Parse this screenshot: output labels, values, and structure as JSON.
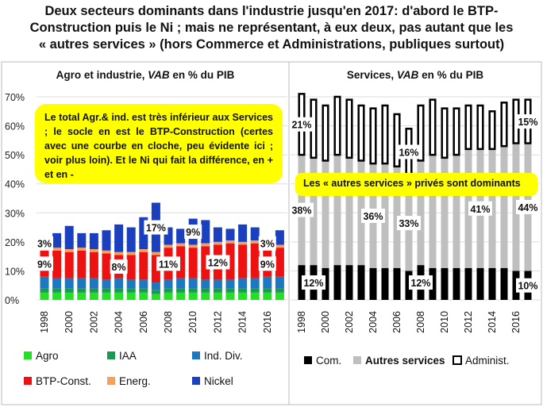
{
  "title": [
    "Deux secteurs dominants dans l'industrie jusqu'en 2017: d'abord le BTP-",
    "Construction puis le Ni ; mais ne représentant, à eux deux, pas autant que les",
    "« autres services » (hors Commerce et Administrations, publiques surtout)"
  ],
  "colors": {
    "Agro": "#22e022",
    "IAA": "#1a9a50",
    "Ind. Div.": "#1e78c0",
    "BTP-Const.": "#ee1111",
    "Energ.": "#f4a060",
    "Nickel": "#1a40c0",
    "Com.": "#000000",
    "Autres services": "#bfbfbf",
    "Administ.": "#ffffff"
  },
  "annotations": {
    "left": "Le total Agr.& ind. est très inférieur aux Services ; le socle en est le BTP-Construction (certes avec une courbe en cloche, peu évidente ici ; voir plus loin). Et le Ni qui fait la différence, en + et en -",
    "right": "Les « autres services » privés sont dominants"
  },
  "chart_data": [
    {
      "type": "bar",
      "stacked": true,
      "title": "Agro et industrie, VAB en % du PIB",
      "ylim": [
        0,
        70
      ],
      "yticks": [
        "0%",
        "10%",
        "20%",
        "30%",
        "40%",
        "50%",
        "60%",
        "70%"
      ],
      "grid": true,
      "legend": "bottom",
      "categories": [
        1998,
        1999,
        2000,
        2001,
        2002,
        2003,
        2004,
        2005,
        2006,
        2007,
        2008,
        2009,
        2010,
        2011,
        2012,
        2013,
        2014,
        2015,
        2016,
        2017
      ],
      "xticklabels": [
        "1998",
        "2000",
        "2002",
        "2004",
        "2006",
        "2008",
        "2010",
        "2012",
        "2014",
        "2016"
      ],
      "series": [
        {
          "name": "Agro",
          "values": [
            2.5,
            2.5,
            2.5,
            2.5,
            2.5,
            2.5,
            2.5,
            2.5,
            2.5,
            2,
            2.5,
            2.5,
            2.5,
            2.5,
            2.5,
            2.5,
            2.5,
            2.5,
            2.5,
            2.5
          ]
        },
        {
          "name": "IAA",
          "values": [
            1.5,
            1.5,
            1.5,
            1.5,
            1.5,
            1.5,
            1.5,
            1.5,
            1.5,
            1.5,
            1.5,
            1.5,
            1.5,
            1.5,
            1.5,
            1.5,
            1.5,
            1.5,
            1.5,
            1.5
          ]
        },
        {
          "name": "Ind. Div.",
          "values": [
            4,
            3.5,
            3.5,
            3.5,
            3.5,
            3,
            3.5,
            3,
            3,
            2.5,
            3,
            3.5,
            3.5,
            3,
            3,
            3,
            3.5,
            3.5,
            4,
            4
          ]
        },
        {
          "name": "BTP-Const.",
          "values": [
            9,
            9.5,
            9,
            9.5,
            9,
            9,
            8,
            8.5,
            9.5,
            9.5,
            11,
            11,
            10.5,
            11.5,
            12,
            12.5,
            11.5,
            12,
            9,
            10
          ]
        },
        {
          "name": "Energ.",
          "values": [
            1,
            1,
            1,
            1,
            1,
            1,
            1,
            1,
            1,
            1,
            1,
            1,
            1,
            1,
            1,
            1,
            1,
            1,
            1,
            1
          ]
        },
        {
          "name": "Nickel",
          "values": [
            3,
            5,
            8,
            5,
            5.5,
            7,
            9.5,
            8.5,
            11,
            17,
            6,
            5,
            9,
            8,
            5,
            4,
            6,
            4.5,
            3,
            5
          ]
        }
      ],
      "data_labels": [
        {
          "series": "Nickel",
          "year": 1998,
          "text": "3%"
        },
        {
          "series": "Nickel",
          "year": 2007,
          "text": "17%"
        },
        {
          "series": "Nickel",
          "year": 2010,
          "text": "9%"
        },
        {
          "series": "Nickel",
          "year": 2016,
          "text": "3%"
        },
        {
          "series": "BTP-Const.",
          "year": 1998,
          "text": "9%"
        },
        {
          "series": "BTP-Const.",
          "year": 2004,
          "text": "8%"
        },
        {
          "series": "BTP-Const.",
          "year": 2008,
          "text": "11%"
        },
        {
          "series": "BTP-Const.",
          "year": 2012,
          "text": "12%"
        },
        {
          "series": "BTP-Const.",
          "year": 2016,
          "text": "9%"
        }
      ]
    },
    {
      "type": "bar",
      "stacked": true,
      "title": "Services, VAB en % du PIB",
      "ylim": [
        0,
        70
      ],
      "grid": true,
      "legend": "bottom",
      "categories": [
        1998,
        1999,
        2000,
        2001,
        2002,
        2003,
        2004,
        2005,
        2006,
        2007,
        2008,
        2009,
        2010,
        2011,
        2012,
        2013,
        2014,
        2015,
        2016,
        2017
      ],
      "xticklabels": [
        "1998",
        "2000",
        "2002",
        "2004",
        "2006",
        "2008",
        "2010",
        "2012",
        "2014",
        "2016"
      ],
      "series": [
        {
          "name": "Com.",
          "values": [
            12,
            12,
            11,
            12,
            12,
            12,
            11,
            11,
            11,
            10,
            12,
            11,
            11,
            11,
            11,
            11,
            11,
            11,
            10,
            10
          ]
        },
        {
          "name": "Autres services",
          "values": [
            38,
            37,
            37,
            38,
            37,
            36,
            36,
            36,
            35,
            33,
            36,
            39,
            38,
            39,
            41,
            41,
            41,
            42,
            44,
            44
          ]
        },
        {
          "name": "Administ.",
          "values": [
            21,
            20,
            19,
            20,
            20,
            19,
            19,
            20,
            18,
            16,
            19,
            19,
            17,
            16,
            15,
            15,
            13,
            15,
            15,
            15
          ]
        }
      ],
      "data_labels": [
        {
          "series": "Administ.",
          "year": 1998,
          "text": "21%"
        },
        {
          "series": "Administ.",
          "year": 2007,
          "text": "16%"
        },
        {
          "series": "Administ.",
          "year": 2017,
          "text": "15%"
        },
        {
          "series": "Autres services",
          "year": 1998,
          "text": "38%"
        },
        {
          "series": "Autres services",
          "year": 2004,
          "text": "36%"
        },
        {
          "series": "Autres services",
          "year": 2007,
          "text": "33%"
        },
        {
          "series": "Autres services",
          "year": 2013,
          "text": "41%"
        },
        {
          "series": "Autres services",
          "year": 2017,
          "text": "44%"
        },
        {
          "series": "Com.",
          "year": 1999,
          "text": "12%"
        },
        {
          "series": "Com.",
          "year": 2008,
          "text": "12%"
        },
        {
          "series": "Com.",
          "year": 2017,
          "text": "10%"
        }
      ]
    }
  ]
}
